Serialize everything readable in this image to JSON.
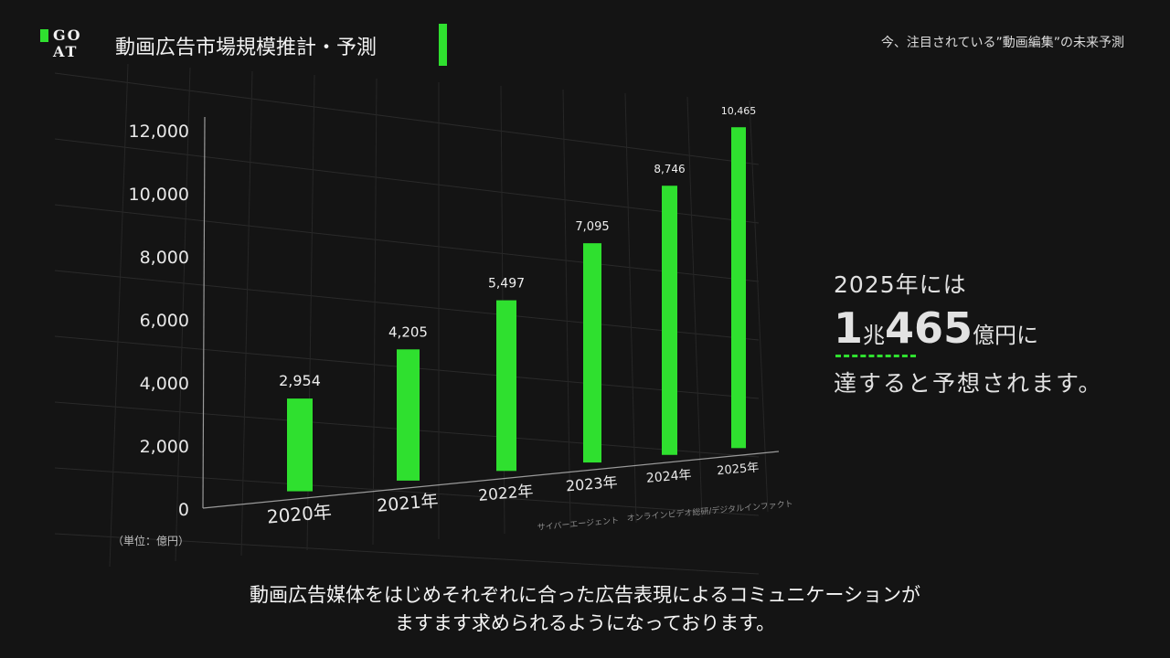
{
  "header": {
    "logo_text": "GOAT",
    "title": "動画広告市場規模推計・予測",
    "right_title": "今、注目されている”動画編集”の未来予測",
    "accent_color": "#2fe02f"
  },
  "chart_data": {
    "type": "bar",
    "categories": [
      "2020年",
      "2021年",
      "2022年",
      "2023年",
      "2024年",
      "2025年"
    ],
    "values": [
      2954,
      4205,
      5497,
      7095,
      8746,
      10465
    ],
    "value_labels": [
      "2,954",
      "4,205",
      "5,497",
      "7,095",
      "8,746",
      "10,465"
    ],
    "y_ticks": [
      "0",
      "2,000",
      "4,000",
      "6,000",
      "8,000",
      "10,000",
      "12,000"
    ],
    "ylim": [
      0,
      12000
    ],
    "unit_label": "（単位：億円）",
    "source_labels": [
      "サイバーエージェント",
      "オンラインビデオ総研/デジタルインファクト"
    ],
    "grid": true,
    "bar_color": "#2fe02f"
  },
  "callout": {
    "line1": "2025年には",
    "big1": "1",
    "small1": "兆",
    "big2": "465",
    "small2": "億円に",
    "line3": "達すると予想されます。"
  },
  "subtitle": {
    "line1": "動画広告媒体をはじめそれぞれに合った広告表現によるコミュニケーションが",
    "line2": "ますます求められるようになっております。"
  }
}
